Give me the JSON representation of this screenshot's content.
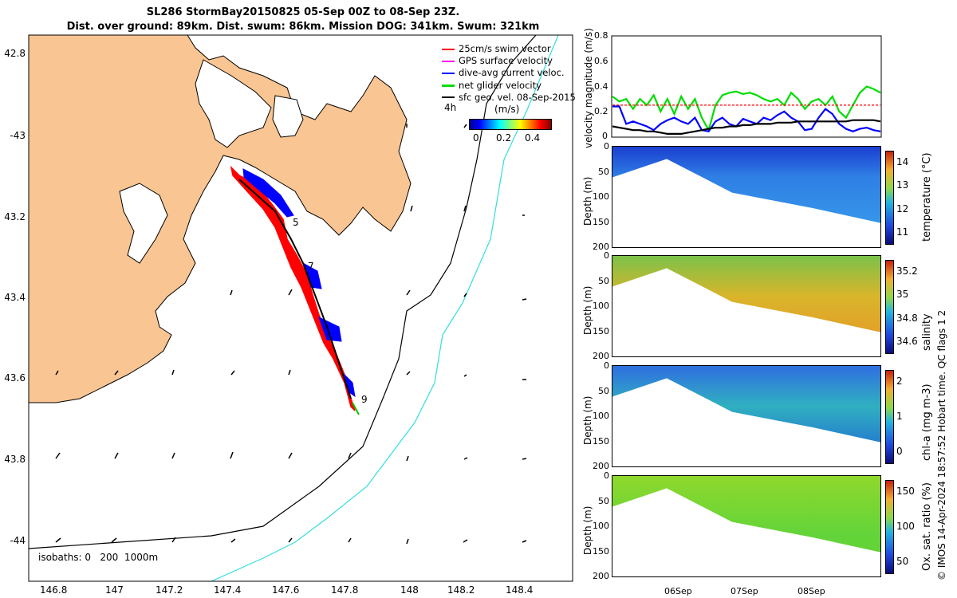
{
  "titles": {
    "line1": "SL286 StormBay20150825 05-Sep 00Z to 08-Sep 23Z.",
    "line2": "Dist. over ground: 89km. Dist. swum: 86km. Mission DOG: 341km. Swum: 321km"
  },
  "map": {
    "xlabels": [
      "146.8",
      "147",
      "147.2",
      "147.4",
      "147.6",
      "147.8",
      "148",
      "148.2",
      "148.4"
    ],
    "ylabels": [
      "42.8",
      "-43",
      "43.2",
      "43.4",
      "43.6",
      "43.8",
      "-44"
    ],
    "isobaths_label": "isobaths: 0   200  1000m",
    "legend": [
      {
        "label": "25cm/s swim vector",
        "color": "#ff0000"
      },
      {
        "label": "GPS surface velocity",
        "color": "#ff00ff"
      },
      {
        "label": "dive-avg current veloc.",
        "color": "#0000ff"
      },
      {
        "label": "net glider velocity",
        "color": "#00dd00"
      },
      {
        "label": "sfc geo. vel. 08-Sep-2015",
        "color": "#000000"
      }
    ],
    "colorbar": {
      "left_label": "4h",
      "unit": "(m/s)",
      "ticks": [
        "0",
        "0.2",
        "0.4"
      ]
    },
    "day_labels": [
      "5",
      "7",
      "9"
    ],
    "colors": {
      "land": "#f9c592",
      "sea": "#ffffff",
      "track": "#ff0000",
      "current": "#0000ff",
      "net": "#00cc00",
      "iso200": "#000000",
      "iso1000": "#33dddd"
    }
  },
  "side_label": "© IMOS 14-Apr-2024 18:57:52 Hobart time. QC flags 1  2",
  "chart_data": [
    {
      "type": "line",
      "ylabel": "velocity magnitude (m/s)",
      "ylim": [
        0,
        0.8
      ],
      "yticks": [
        "0",
        "0.2",
        "0.4",
        "0.6",
        "0.8"
      ],
      "series": [
        {
          "color": "#00dd00",
          "values": [
            0.32,
            0.28,
            0.3,
            0.22,
            0.3,
            0.25,
            0.33,
            0.2,
            0.3,
            0.18,
            0.32,
            0.22,
            0.3,
            0.15,
            0.05,
            0.25,
            0.33,
            0.35,
            0.36,
            0.34,
            0.35,
            0.33,
            0.3,
            0.28,
            0.3,
            0.25,
            0.35,
            0.3,
            0.22,
            0.28,
            0.3,
            0.25,
            0.32,
            0.2,
            0.15,
            0.25,
            0.35,
            0.4,
            0.38,
            0.35
          ]
        },
        {
          "color": "#ff0000",
          "values": [
            0.25,
            0.25,
            0.25,
            0.25,
            0.25,
            0.25,
            0.25,
            0.25,
            0.25,
            0.25,
            0.25,
            0.25,
            0.25,
            0.25,
            0.25,
            0.25,
            0.25,
            0.25,
            0.25,
            0.25,
            0.25,
            0.25,
            0.25,
            0.25,
            0.25,
            0.25,
            0.25,
            0.25,
            0.25,
            0.25,
            0.25,
            0.25,
            0.25,
            0.25,
            0.25,
            0.25,
            0.25,
            0.25,
            0.25,
            0.25
          ]
        },
        {
          "color": "#0000ff",
          "values": [
            0.24,
            0.24,
            0.1,
            0.12,
            0.1,
            0.08,
            0.05,
            0.1,
            0.13,
            0.15,
            0.12,
            0.1,
            0.15,
            0.05,
            0.04,
            0.12,
            0.15,
            0.1,
            0.08,
            0.14,
            0.12,
            0.1,
            0.15,
            0.13,
            0.17,
            0.2,
            0.15,
            0.12,
            0.05,
            0.06,
            0.15,
            0.22,
            0.18,
            0.1,
            0.06,
            0.04,
            0.06,
            0.07,
            0.05,
            0.04
          ]
        },
        {
          "color": "#000000",
          "values": [
            0.08,
            0.07,
            0.06,
            0.05,
            0.05,
            0.04,
            0.04,
            0.03,
            0.02,
            0.02,
            0.02,
            0.03,
            0.04,
            0.05,
            0.06,
            0.07,
            0.07,
            0.08,
            0.08,
            0.09,
            0.09,
            0.1,
            0.1,
            0.1,
            0.11,
            0.11,
            0.11,
            0.12,
            0.12,
            0.12,
            0.12,
            0.12,
            0.12,
            0.12,
            0.12,
            0.13,
            0.13,
            0.13,
            0.13,
            0.12
          ]
        }
      ]
    },
    {
      "type": "heatmap",
      "ylabel": "Depth (m)",
      "cbar_label": "temperature (°C)",
      "yticks": [
        "0",
        "50",
        "100",
        "150",
        "200"
      ],
      "cbar_ticks": [
        "11",
        "12",
        "13",
        "14"
      ],
      "clim": [
        10.5,
        14.5
      ]
    },
    {
      "type": "heatmap",
      "ylabel": "Depth (m)",
      "cbar_label": "salinity",
      "yticks": [
        "0",
        "50",
        "100",
        "150",
        "200"
      ],
      "cbar_ticks": [
        "34.6",
        "34.8",
        "35",
        "35.2"
      ],
      "clim": [
        34.45,
        35.35
      ]
    },
    {
      "type": "heatmap",
      "ylabel": "Depth (m)",
      "cbar_label": "chl-a (mg m-3)",
      "yticks": [
        "0",
        "50",
        "100",
        "150",
        "200"
      ],
      "cbar_ticks": [
        "0",
        "1",
        "2"
      ],
      "clim": [
        0,
        2
      ]
    },
    {
      "type": "heatmap",
      "ylabel": "Depth (m)",
      "cbar_label": "Ox. sat. ratio (%)",
      "yticks": [
        "0",
        "50",
        "100",
        "150",
        "200"
      ],
      "cbar_ticks": [
        "50",
        "100",
        "150"
      ],
      "clim": [
        25,
        175
      ]
    }
  ],
  "time_axis": {
    "labels": [
      "06Sep",
      "07Sep",
      "08Sep"
    ]
  }
}
